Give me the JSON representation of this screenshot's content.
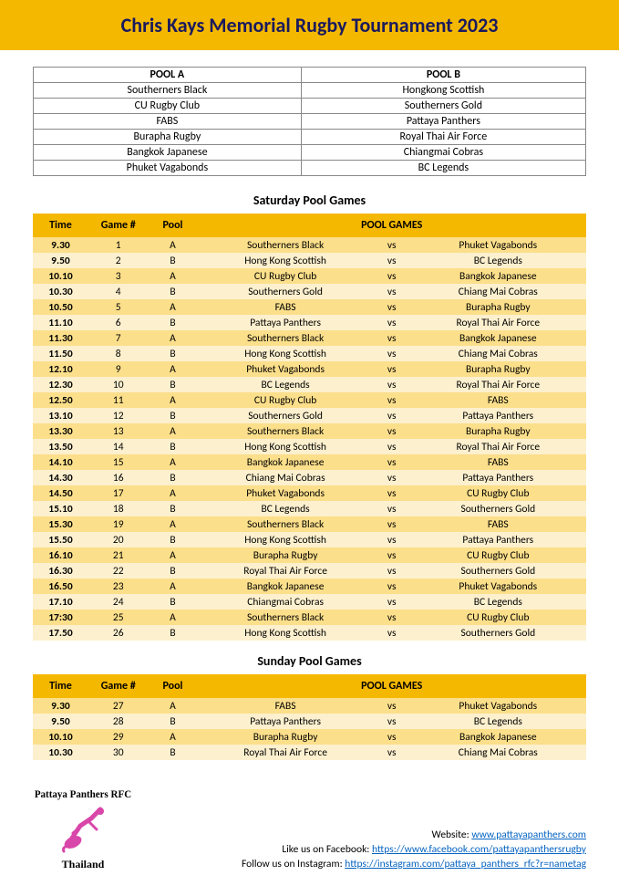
{
  "colors": {
    "banner_bg": "#f5b800",
    "banner_text": "#1a1a5e",
    "row_a_bg": "#fcdf8b",
    "row_b_bg": "#fdf0ce",
    "link": "#0563c1",
    "border": "#888888",
    "page_bg": "#ffffff"
  },
  "title": "Chris Kays Memorial Rugby Tournament 2023",
  "pools": {
    "headers": [
      "POOL A",
      "POOL B"
    ],
    "rows": [
      [
        "Southerners Black",
        "Hongkong Scottish"
      ],
      [
        "CU Rugby Club",
        "Southerners Gold"
      ],
      [
        "FABS",
        "Pattaya Panthers"
      ],
      [
        "Burapha Rugby",
        "Royal Thai Air Force"
      ],
      [
        "Bangkok Japanese",
        "Chiangmai Cobras"
      ],
      [
        "Phuket Vagabonds",
        "BC Legends"
      ]
    ]
  },
  "saturday": {
    "title": "Saturday Pool Games",
    "headers": {
      "time": "Time",
      "game": "Game #",
      "pool": "Pool",
      "pool_games": "POOL GAMES"
    },
    "vs": "vs",
    "games": [
      {
        "time": "9.30",
        "num": "1",
        "pool": "A",
        "t1": "Southerners Black",
        "t2": "Phuket Vagabonds"
      },
      {
        "time": "9.50",
        "num": "2",
        "pool": "B",
        "t1": "Hong Kong Scottish",
        "t2": "BC Legends"
      },
      {
        "time": "10.10",
        "num": "3",
        "pool": "A",
        "t1": "CU Rugby Club",
        "t2": "Bangkok Japanese"
      },
      {
        "time": "10.30",
        "num": "4",
        "pool": "B",
        "t1": "Southerners Gold",
        "t2": "Chiang Mai Cobras"
      },
      {
        "time": "10.50",
        "num": "5",
        "pool": "A",
        "t1": "FABS",
        "t2": "Burapha Rugby"
      },
      {
        "time": "11.10",
        "num": "6",
        "pool": "B",
        "t1": "Pattaya Panthers",
        "t2": "Royal Thai Air Force"
      },
      {
        "time": "11.30",
        "num": "7",
        "pool": "A",
        "t1": "Southerners Black",
        "t2": "Bangkok Japanese"
      },
      {
        "time": "11.50",
        "num": "8",
        "pool": "B",
        "t1": "Hong Kong Scottish",
        "t2": "Chiang Mai Cobras"
      },
      {
        "time": "12.10",
        "num": "9",
        "pool": "A",
        "t1": "Phuket Vagabonds",
        "t2": "Burapha Rugby"
      },
      {
        "time": "12.30",
        "num": "10",
        "pool": "B",
        "t1": "BC Legends",
        "t2": "Royal Thai Air Force"
      },
      {
        "time": "12.50",
        "num": "11",
        "pool": "A",
        "t1": "CU Rugby Club",
        "t2": "FABS"
      },
      {
        "time": "13.10",
        "num": "12",
        "pool": "B",
        "t1": "Southerners Gold",
        "t2": "Pattaya Panthers"
      },
      {
        "time": "13.30",
        "num": "13",
        "pool": "A",
        "t1": "Southerners Black",
        "t2": "Burapha Rugby"
      },
      {
        "time": "13.50",
        "num": "14",
        "pool": "B",
        "t1": "Hong Kong Scottish",
        "t2": "Royal Thai Air Force"
      },
      {
        "time": "14.10",
        "num": "15",
        "pool": "A",
        "t1": "Bangkok Japanese",
        "t2": "FABS"
      },
      {
        "time": "14.30",
        "num": "16",
        "pool": "B",
        "t1": "Chiang Mai Cobras",
        "t2": "Pattaya Panthers"
      },
      {
        "time": "14.50",
        "num": "17",
        "pool": "A",
        "t1": "Phuket Vagabonds",
        "t2": "CU Rugby Club"
      },
      {
        "time": "15.10",
        "num": "18",
        "pool": "B",
        "t1": "BC Legends",
        "t2": "Southerners Gold"
      },
      {
        "time": "15.30",
        "num": "19",
        "pool": "A",
        "t1": "Southerners Black",
        "t2": "FABS"
      },
      {
        "time": "15.50",
        "num": "20",
        "pool": "B",
        "t1": "Hong Kong Scottish",
        "t2": "Pattaya Panthers"
      },
      {
        "time": "16.10",
        "num": "21",
        "pool": "A",
        "t1": "Burapha Rugby",
        "t2": "CU Rugby Club"
      },
      {
        "time": "16.30",
        "num": "22",
        "pool": "B",
        "t1": "Royal Thai Air Force",
        "t2": "Southerners Gold"
      },
      {
        "time": "16.50",
        "num": "23",
        "pool": "A",
        "t1": "Bangkok Japanese",
        "t2": "Phuket Vagabonds"
      },
      {
        "time": "17.10",
        "num": "24",
        "pool": "B",
        "t1": "Chiangmai Cobras",
        "t2": "BC Legends"
      },
      {
        "time": "17:30",
        "num": "25",
        "pool": "A",
        "t1": "Southerners Black",
        "t2": "CU Rugby Club"
      },
      {
        "time": "17.50",
        "num": "26",
        "pool": "B",
        "t1": "Hong Kong Scottish",
        "t2": "Southerners Gold"
      }
    ]
  },
  "sunday": {
    "title": "Sunday Pool Games",
    "headers": {
      "time": "Time",
      "game": "Game #",
      "pool": "Pool",
      "pool_games": "POOL GAMES"
    },
    "vs": "vs",
    "games": [
      {
        "time": "9.30",
        "num": "27",
        "pool": "A",
        "t1": "FABS",
        "t2": "Phuket Vagabonds"
      },
      {
        "time": "9.50",
        "num": "28",
        "pool": "B",
        "t1": "Pattaya Panthers",
        "t2": "BC Legends"
      },
      {
        "time": "10.10",
        "num": "29",
        "pool": "A",
        "t1": "Burapha Rugby",
        "t2": "Bangkok Japanese"
      },
      {
        "time": "10.30",
        "num": "30",
        "pool": "B",
        "t1": "Royal Thai Air Force",
        "t2": "Chiang Mai Cobras"
      }
    ]
  },
  "footer": {
    "logo_top": "Pattaya Panthers RFC",
    "logo_bottom": "Thailand",
    "website_label": "Website: ",
    "website_link": "www.pattayapanthers.com",
    "fb_label": "Like us on Facebook: ",
    "fb_link": "https://www.facebook.com/pattayapanthersrugby",
    "ig_label": "Follow us on Instagram: ",
    "ig_link": "https://instagram.com/pattaya_panthers_rfc?r=nametag"
  }
}
